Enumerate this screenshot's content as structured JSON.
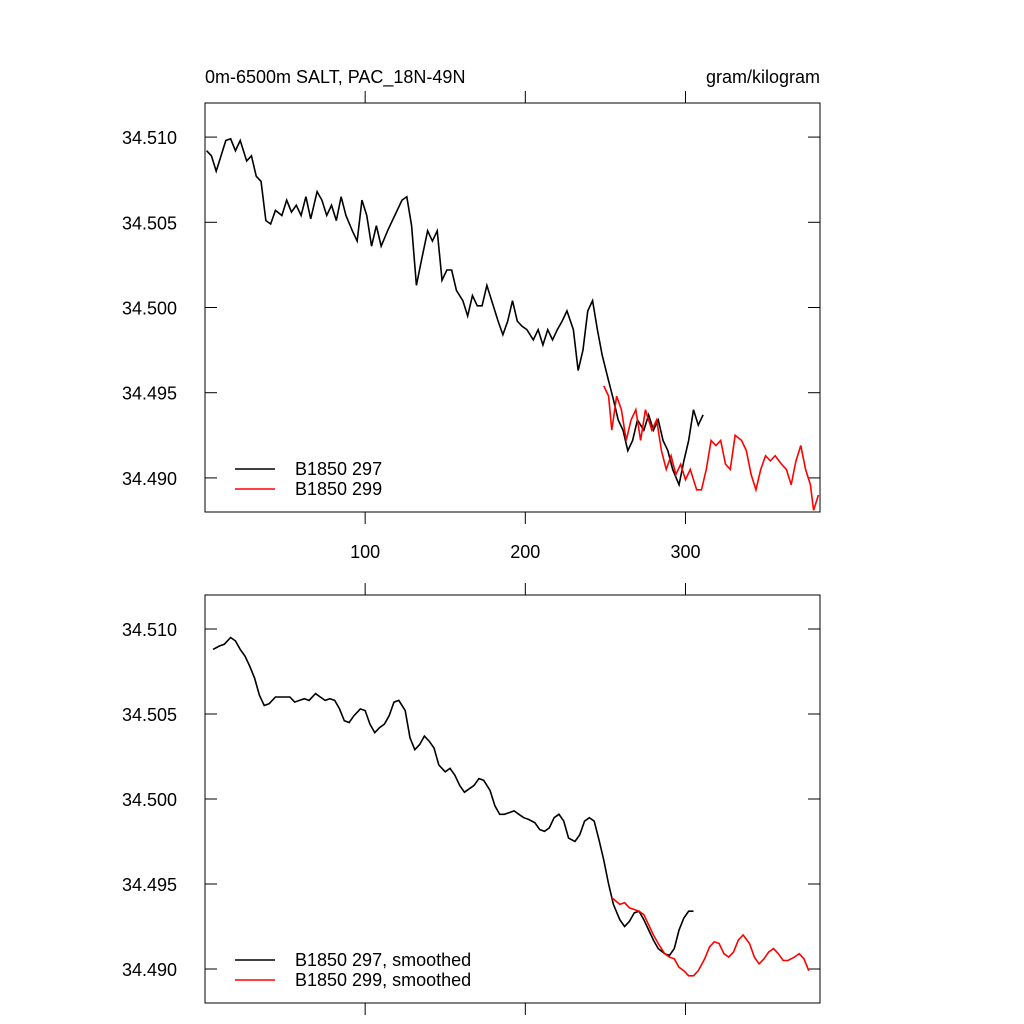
{
  "chart_data": [
    {
      "type": "line",
      "title": "0m-6500m SALT, PAC_18N-49N",
      "units": "gram/kilogram",
      "xlim": [
        0,
        384
      ],
      "xticks": [
        100,
        200,
        300
      ],
      "xtick_labels": true,
      "ylim": [
        34.488,
        34.512
      ],
      "yticks": [
        {
          "value": 34.51,
          "label": "34.510"
        },
        34.505,
        {
          "value": 34.5,
          "label": "34.500"
        },
        34.495,
        {
          "value": 34.49,
          "label": "34.490"
        }
      ],
      "legend": "lower left",
      "series": [
        {
          "name": "B1850 297",
          "color": "#000000",
          "x": [
            1,
            4,
            7,
            10,
            13,
            16,
            19,
            22,
            26,
            29,
            32,
            35,
            38,
            41,
            44,
            48,
            51,
            54,
            57,
            60,
            63,
            66,
            70,
            73,
            76,
            79,
            82,
            85,
            88,
            92,
            95,
            98,
            101,
            104,
            107,
            110,
            114,
            117,
            120,
            123,
            126,
            129,
            132,
            135,
            139,
            142,
            145,
            148,
            151,
            154,
            157,
            161,
            164,
            167,
            170,
            173,
            176,
            179,
            183,
            186,
            189,
            192,
            195,
            198,
            201,
            205,
            208,
            211,
            214,
            217,
            220,
            223,
            226,
            230,
            233,
            236,
            239,
            242,
            245,
            248,
            252,
            255,
            258,
            261,
            264,
            267,
            270,
            274,
            277,
            280,
            283,
            286,
            289,
            292,
            296,
            299,
            302,
            305,
            308,
            311
          ],
          "values": [
            34.5092,
            34.5089,
            34.508,
            34.5089,
            34.5098,
            34.5099,
            34.5092,
            34.5098,
            34.5086,
            34.5089,
            34.5077,
            34.5074,
            34.5051,
            34.5049,
            34.5057,
            34.5054,
            34.5063,
            34.5056,
            34.506,
            34.5054,
            34.5065,
            34.5052,
            34.5068,
            34.5063,
            34.5054,
            34.506,
            34.5051,
            34.5065,
            34.5054,
            34.5045,
            34.5039,
            34.5063,
            34.5054,
            34.5036,
            34.5048,
            34.5036,
            34.5045,
            34.5051,
            34.5057,
            34.5063,
            34.5065,
            34.5048,
            34.5013,
            34.5027,
            34.5045,
            34.5039,
            34.5045,
            34.5016,
            34.5022,
            34.5022,
            34.501,
            34.5004,
            34.4995,
            34.5007,
            34.5001,
            34.5001,
            34.5013,
            34.5004,
            34.4992,
            34.4984,
            34.4992,
            34.5004,
            34.4992,
            34.4989,
            34.4987,
            34.4981,
            34.4987,
            34.4978,
            34.4987,
            34.4981,
            34.4987,
            34.4992,
            34.4998,
            34.4987,
            34.4963,
            34.4975,
            34.4998,
            34.5004,
            34.4987,
            34.4972,
            34.4957,
            34.4946,
            34.4934,
            34.4928,
            34.4916,
            34.4922,
            34.4934,
            34.4928,
            34.4937,
            34.4928,
            34.4934,
            34.4922,
            34.4916,
            34.4905,
            34.4896,
            34.491,
            34.4922,
            34.494,
            34.4931,
            34.4937
          ]
        },
        {
          "name": "B1850 299",
          "color": "#ff0000",
          "x": [
            249,
            252,
            254,
            257,
            260,
            263,
            266,
            269,
            272,
            275,
            279,
            282,
            285,
            288,
            291,
            294,
            297,
            300,
            303,
            307,
            310,
            313,
            316,
            319,
            322,
            325,
            328,
            331,
            335,
            338,
            341,
            344,
            347,
            350,
            353,
            356,
            360,
            363,
            366,
            369,
            372,
            375,
            378,
            380,
            383
          ],
          "values": [
            34.4954,
            34.4948,
            34.4928,
            34.4948,
            34.494,
            34.4922,
            34.4934,
            34.494,
            34.4922,
            34.494,
            34.4928,
            34.4934,
            34.4916,
            34.4905,
            34.4913,
            34.4902,
            34.4908,
            34.4899,
            34.4905,
            34.4893,
            34.4893,
            34.4905,
            34.4922,
            34.4919,
            34.4922,
            34.4908,
            34.4905,
            34.4925,
            34.4922,
            34.4916,
            34.4902,
            34.4893,
            34.4905,
            34.4913,
            34.491,
            34.4913,
            34.4908,
            34.4905,
            34.4896,
            34.491,
            34.4919,
            34.4905,
            34.4896,
            34.4881,
            34.489
          ]
        }
      ]
    },
    {
      "type": "line",
      "xlim": [
        0,
        384
      ],
      "xticks": [
        100,
        200,
        300
      ],
      "xtick_labels": false,
      "ylim": [
        34.488,
        34.512
      ],
      "yticks": [
        {
          "value": 34.51,
          "label": "34.510"
        },
        34.505,
        {
          "value": 34.5,
          "label": "34.500"
        },
        34.495,
        {
          "value": 34.49,
          "label": "34.490"
        }
      ],
      "legend": "lower left",
      "series": [
        {
          "name": "B1850 297, smoothed",
          "color": "#000000",
          "x": [
            5,
            9,
            12,
            16,
            19,
            22,
            25,
            28,
            31,
            34,
            37,
            40,
            44,
            47,
            50,
            53,
            56,
            59,
            62,
            65,
            69,
            72,
            75,
            78,
            81,
            84,
            87,
            90,
            93,
            97,
            100,
            103,
            106,
            109,
            112,
            115,
            118,
            121,
            125,
            128,
            131,
            134,
            137,
            140,
            143,
            146,
            150,
            153,
            156,
            159,
            162,
            165,
            168,
            171,
            174,
            178,
            181,
            184,
            187,
            190,
            193,
            196,
            199,
            202,
            206,
            209,
            212,
            215,
            218,
            221,
            224,
            227,
            231,
            234,
            237,
            240,
            243,
            246,
            249,
            252,
            255,
            259,
            262,
            265,
            268,
            271,
            274,
            277,
            280,
            283,
            287,
            290,
            293,
            296,
            299,
            302,
            305
          ],
          "values": [
            34.5088,
            34.509,
            34.5091,
            34.5095,
            34.5093,
            34.5088,
            34.5084,
            34.5078,
            34.5071,
            34.5061,
            34.5055,
            34.5056,
            34.506,
            34.506,
            34.506,
            34.506,
            34.5057,
            34.5058,
            34.5059,
            34.5058,
            34.5062,
            34.506,
            34.5058,
            34.5059,
            34.5058,
            34.5053,
            34.5046,
            34.5045,
            34.5049,
            34.5053,
            34.5052,
            34.5044,
            34.5039,
            34.5042,
            34.5044,
            34.5049,
            34.5057,
            34.5058,
            34.5052,
            34.5036,
            34.5029,
            34.5032,
            34.5037,
            34.5034,
            34.503,
            34.502,
            34.5016,
            34.5018,
            34.5014,
            34.5008,
            34.5004,
            34.5006,
            34.5008,
            34.5012,
            34.5011,
            34.5005,
            34.4996,
            34.4991,
            34.4991,
            34.4992,
            34.4993,
            34.4991,
            34.4989,
            34.4988,
            34.4986,
            34.4982,
            34.4981,
            34.4983,
            34.4989,
            34.4991,
            34.4987,
            34.4977,
            34.4975,
            34.4979,
            34.4987,
            34.4989,
            34.4987,
            34.4976,
            34.4964,
            34.495,
            34.4938,
            34.4929,
            34.4925,
            34.4928,
            34.4933,
            34.4934,
            34.4929,
            34.4923,
            34.4917,
            34.4912,
            34.4909,
            34.4908,
            34.4912,
            34.4923,
            34.493,
            34.4934,
            34.4934
          ]
        },
        {
          "name": "B1850 299, smoothed",
          "color": "#ff0000",
          "x": [
            254,
            259,
            262,
            265,
            268,
            271,
            274,
            277,
            280,
            283,
            287,
            290,
            293,
            296,
            299,
            302,
            305,
            308,
            312,
            315,
            318,
            321,
            324,
            327,
            330,
            333,
            336,
            340,
            343,
            346,
            349,
            352,
            355,
            358,
            361,
            364,
            368,
            371,
            374,
            377
          ],
          "values": [
            34.4942,
            34.4938,
            34.4939,
            34.4936,
            34.4935,
            34.4934,
            34.4932,
            34.4926,
            34.492,
            34.4915,
            34.4909,
            34.4907,
            34.4906,
            34.4901,
            34.4899,
            34.4896,
            34.4896,
            34.4899,
            34.4906,
            34.4913,
            34.4916,
            34.4915,
            34.4909,
            34.4907,
            34.491,
            34.4917,
            34.492,
            34.4915,
            34.4907,
            34.4903,
            34.4906,
            34.491,
            34.4912,
            34.4909,
            34.4905,
            34.4905,
            34.4907,
            34.4909,
            34.4906,
            34.4899
          ]
        }
      ]
    }
  ]
}
